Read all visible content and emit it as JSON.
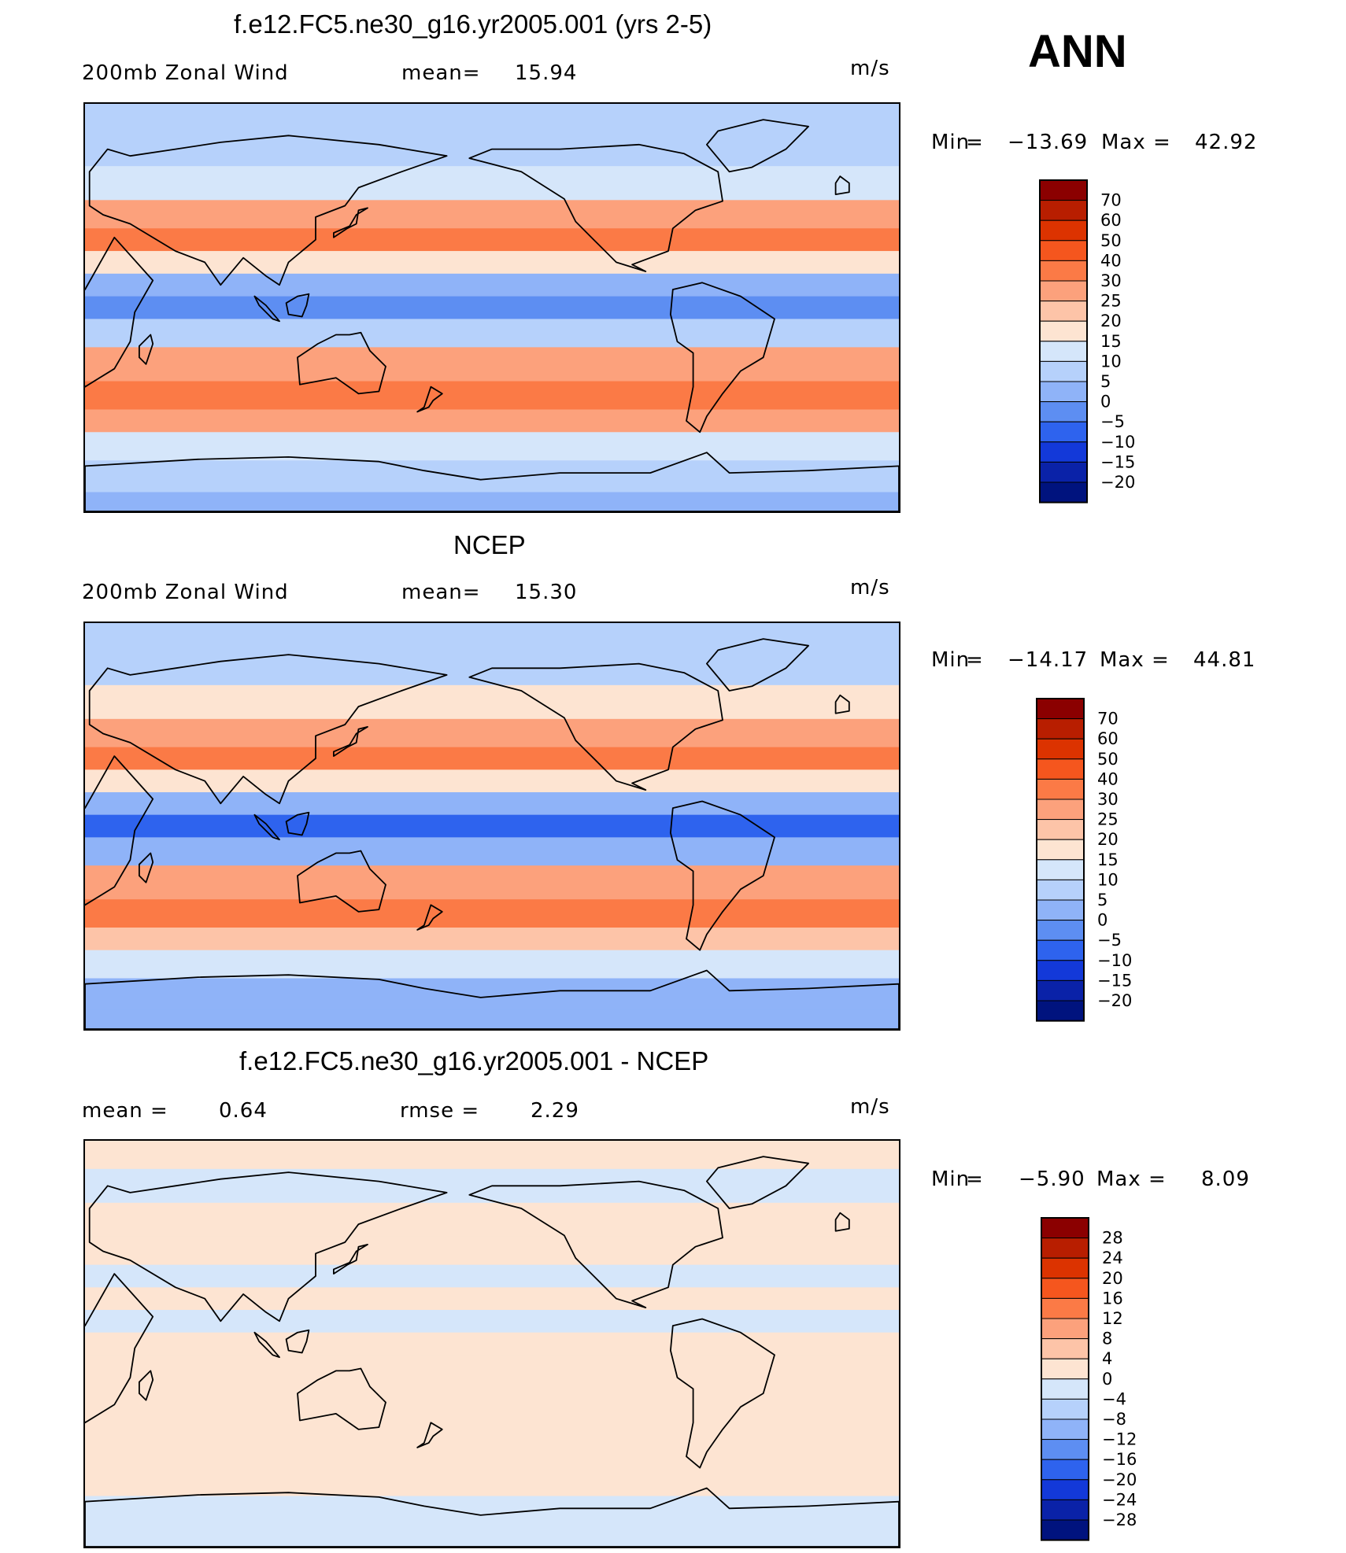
{
  "annual_label": "ANN",
  "panels": [
    {
      "title": "f.e12.FC5.ne30_g16.yr2005.001 (yrs 2-5)",
      "left_label": "200mb Zonal Wind",
      "center_label": "mean=",
      "center_value": "15.94",
      "units": "m/s",
      "min_label": "Min",
      "min_value": "−13.69",
      "max_label": "Max",
      "max_value": "42.92"
    },
    {
      "title": "NCEP",
      "left_label": "200mb Zonal Wind",
      "center_label": "mean=",
      "center_value": "15.30",
      "units": "m/s",
      "min_label": "Min",
      "min_value": "−14.17",
      "max_label": "Max",
      "max_value": "44.81"
    },
    {
      "title": "f.e12.FC5.ne30_g16.yr2005.001 - NCEP",
      "left_label": "mean =",
      "left_value": "0.64",
      "center_label": "rmse =",
      "center_value": "2.29",
      "units": "m/s",
      "min_label": "Min",
      "min_value": "−5.90",
      "max_label": "Max",
      "max_value": "8.09"
    }
  ],
  "chart_data": [
    {
      "type": "heatmap",
      "subtype": "filled contour map",
      "title": "f.e12.FC5.ne30_g16.yr2005.001 (yrs 2-5)",
      "variable": "200mb Zonal Wind",
      "units": "m/s",
      "mean": 15.94,
      "min": -13.69,
      "max": 42.92,
      "colorbar_levels": [
        "70",
        "60",
        "50",
        "40",
        "30",
        "25",
        "20",
        "15",
        "10",
        "5",
        "0",
        "−5",
        "−10",
        "−15",
        "−20"
      ],
      "colorbar_colors": [
        "#8b0000",
        "#b81e00",
        "#dc3300",
        "#f5561e",
        "#fb7a46",
        "#fca17c",
        "#fdc4a8",
        "#fde4d2",
        "#d5e6fa",
        "#b6d1fb",
        "#8fb3f8",
        "#5d8ef2",
        "#2e63ee",
        "#1339d9",
        "#0a22a8",
        "#00137e"
      ],
      "zonal_profile": [
        {
          "lat": 85,
          "value": 8
        },
        {
          "lat": 70,
          "value": 7
        },
        {
          "lat": 55,
          "value": 14
        },
        {
          "lat": 40,
          "value": 28
        },
        {
          "lat": 30,
          "value": 30
        },
        {
          "lat": 20,
          "value": 18
        },
        {
          "lat": 10,
          "value": 2
        },
        {
          "lat": 0,
          "value": -5
        },
        {
          "lat": -10,
          "value": 5
        },
        {
          "lat": -25,
          "value": 28
        },
        {
          "lat": -40,
          "value": 33
        },
        {
          "lat": -50,
          "value": 26
        },
        {
          "lat": -60,
          "value": 12
        },
        {
          "lat": -75,
          "value": 6
        },
        {
          "lat": -88,
          "value": 3
        }
      ]
    },
    {
      "type": "heatmap",
      "subtype": "filled contour map",
      "title": "NCEP",
      "variable": "200mb Zonal Wind",
      "units": "m/s",
      "mean": 15.3,
      "min": -14.17,
      "max": 44.81,
      "colorbar_levels": [
        "70",
        "60",
        "50",
        "40",
        "30",
        "25",
        "20",
        "15",
        "10",
        "5",
        "0",
        "−5",
        "−10",
        "−15",
        "−20"
      ],
      "colorbar_colors": [
        "#8b0000",
        "#b81e00",
        "#dc3300",
        "#f5561e",
        "#fb7a46",
        "#fca17c",
        "#fdc4a8",
        "#fde4d2",
        "#d5e6fa",
        "#b6d1fb",
        "#8fb3f8",
        "#5d8ef2",
        "#2e63ee",
        "#1339d9",
        "#0a22a8",
        "#00137e"
      ],
      "zonal_profile": [
        {
          "lat": 85,
          "value": 6
        },
        {
          "lat": 70,
          "value": 8
        },
        {
          "lat": 55,
          "value": 15
        },
        {
          "lat": 40,
          "value": 27
        },
        {
          "lat": 30,
          "value": 30
        },
        {
          "lat": 20,
          "value": 15
        },
        {
          "lat": 10,
          "value": 0
        },
        {
          "lat": 0,
          "value": -6
        },
        {
          "lat": -10,
          "value": 4
        },
        {
          "lat": -25,
          "value": 26
        },
        {
          "lat": -40,
          "value": 30
        },
        {
          "lat": -50,
          "value": 24
        },
        {
          "lat": -60,
          "value": 10
        },
        {
          "lat": -75,
          "value": 4
        },
        {
          "lat": -88,
          "value": 2
        }
      ]
    },
    {
      "type": "heatmap",
      "subtype": "filled contour map (difference)",
      "title": "f.e12.FC5.ne30_g16.yr2005.001 - NCEP",
      "variable": "200mb Zonal Wind difference",
      "units": "m/s",
      "mean": 0.64,
      "rmse": 2.29,
      "min": -5.9,
      "max": 8.09,
      "colorbar_levels": [
        "28",
        "24",
        "20",
        "16",
        "12",
        "8",
        "4",
        "0",
        "−4",
        "−8",
        "−12",
        "−16",
        "−20",
        "−24",
        "−28"
      ],
      "colorbar_colors": [
        "#8b0000",
        "#b81e00",
        "#dc3300",
        "#f5561e",
        "#fb7a46",
        "#fca17c",
        "#fdc4a8",
        "#fde4d2",
        "#d5e6fa",
        "#b6d1fb",
        "#8fb3f8",
        "#5d8ef2",
        "#2e63ee",
        "#1339d9",
        "#0a22a8",
        "#00137e"
      ],
      "zonal_profile": [
        {
          "lat": 85,
          "value": 1
        },
        {
          "lat": 70,
          "value": -1
        },
        {
          "lat": 55,
          "value": 1
        },
        {
          "lat": 40,
          "value": 1
        },
        {
          "lat": 30,
          "value": -1
        },
        {
          "lat": 20,
          "value": 2
        },
        {
          "lat": 10,
          "value": -1
        },
        {
          "lat": 0,
          "value": 1
        },
        {
          "lat": -10,
          "value": 1
        },
        {
          "lat": -25,
          "value": 2
        },
        {
          "lat": -40,
          "value": 3
        },
        {
          "lat": -50,
          "value": 2
        },
        {
          "lat": -60,
          "value": 1
        },
        {
          "lat": -75,
          "value": -1
        },
        {
          "lat": -88,
          "value": -1
        }
      ]
    }
  ]
}
